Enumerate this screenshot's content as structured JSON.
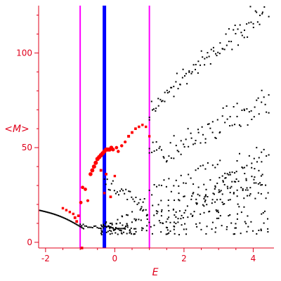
{
  "chart_data": {
    "type": "scatter",
    "title": "",
    "xlabel": "E",
    "ylabel": "<M>",
    "xlim": [
      -2.2,
      4.6
    ],
    "ylim": [
      -3,
      125
    ],
    "grid": false,
    "legend": "none",
    "x_ticks": [
      -2,
      0,
      2,
      4
    ],
    "x_tick_labels": [
      "-2",
      "0",
      "2",
      "4"
    ],
    "y_ticks": [
      0,
      50,
      100
    ],
    "y_tick_labels": [
      "0",
      "50",
      "100"
    ],
    "colors": {
      "axis": "#e0001b",
      "black_points": "#000000",
      "red_points": "#ff0000",
      "vertical_magenta": "#ff00ff",
      "vertical_blue": "#0000ff"
    },
    "vertical_lines": [
      {
        "x": -1.0,
        "color": "#ff00ff",
        "width": "thin"
      },
      {
        "x": -0.3,
        "color": "#0000ff",
        "width": "thick"
      },
      {
        "x": 1.0,
        "color": "#ff00ff",
        "width": "thin"
      }
    ],
    "red_series_points": [
      {
        "x": -1.5,
        "y": 18,
        "s": 1
      },
      {
        "x": -1.4,
        "y": 17,
        "s": 1
      },
      {
        "x": -1.3,
        "y": 16,
        "s": 1
      },
      {
        "x": -1.2,
        "y": 15,
        "s": 1
      },
      {
        "x": -1.15,
        "y": 13,
        "s": 1.3
      },
      {
        "x": -1.1,
        "y": 11,
        "s": 1.3
      },
      {
        "x": -1.05,
        "y": 14,
        "s": 1.2
      },
      {
        "x": -0.98,
        "y": 21,
        "s": 2
      },
      {
        "x": -0.93,
        "y": 29,
        "s": 2
      },
      {
        "x": -0.85,
        "y": 28,
        "s": 2
      },
      {
        "x": -0.78,
        "y": 22,
        "s": 1.5
      },
      {
        "x": -0.7,
        "y": 36,
        "s": 2.6
      },
      {
        "x": -0.65,
        "y": 38,
        "s": 2.8
      },
      {
        "x": -0.6,
        "y": 40,
        "s": 2.9
      },
      {
        "x": -0.55,
        "y": 42,
        "s": 2.9
      },
      {
        "x": -0.5,
        "y": 44,
        "s": 2.9
      },
      {
        "x": -0.45,
        "y": 45,
        "s": 2.9
      },
      {
        "x": -0.4,
        "y": 46,
        "s": 2.9
      },
      {
        "x": -0.35,
        "y": 47,
        "s": 2.9
      },
      {
        "x": -0.3,
        "y": 48,
        "s": 2.9
      },
      {
        "x": -0.25,
        "y": 49,
        "s": 2.9
      },
      {
        "x": -0.2,
        "y": 49,
        "s": 2.9
      },
      {
        "x": -0.15,
        "y": 49,
        "s": 2.9
      },
      {
        "x": -0.1,
        "y": 50,
        "s": 2.6
      },
      {
        "x": -0.05,
        "y": 49,
        "s": 2.3
      },
      {
        "x": 0.05,
        "y": 50,
        "s": 2
      },
      {
        "x": 0.1,
        "y": 48,
        "s": 1.8
      },
      {
        "x": 0.2,
        "y": 51,
        "s": 1.8
      },
      {
        "x": 0.3,
        "y": 53,
        "s": 1.6
      },
      {
        "x": 0.4,
        "y": 56,
        "s": 1.4
      },
      {
        "x": 0.5,
        "y": 58,
        "s": 1.3
      },
      {
        "x": 0.6,
        "y": 60,
        "s": 1.2
      },
      {
        "x": 0.7,
        "y": 61,
        "s": 1.1
      },
      {
        "x": 0.8,
        "y": 62,
        "s": 1
      },
      {
        "x": 0.9,
        "y": 61,
        "s": 1
      },
      {
        "x": 1.0,
        "y": 56,
        "s": 1
      },
      {
        "x": -0.95,
        "y": -3,
        "s": 1.3
      },
      {
        "x": -0.4,
        "y": 38,
        "s": 1.3
      },
      {
        "x": -0.25,
        "y": 36,
        "s": 1.2
      },
      {
        "x": -0.3,
        "y": 26,
        "s": 1
      },
      {
        "x": 0.0,
        "y": 35,
        "s": 1
      },
      {
        "x": -0.12,
        "y": 24,
        "s": 1.2
      }
    ],
    "black_band_upper": {
      "x_start": 1.0,
      "x_end": 4.45,
      "y_start": 70,
      "y_end": 125
    },
    "black_band_middle": {
      "x_start": 1.0,
      "x_end": 4.45,
      "y_start": 43,
      "y_end": 74
    },
    "black_band_lower": {
      "x_start": 1.0,
      "x_end": 4.45,
      "y_start": 28,
      "y_end": 47
    },
    "black_cloud": {
      "x_start": -0.4,
      "x_end": 4.45,
      "y_min": 0,
      "y_max": 45
    },
    "black_left_curve": {
      "x_start": -2.2,
      "x_end": -0.9,
      "y_start": 17,
      "y_end": 7
    },
    "black_rising_curve": {
      "x_start": -0.3,
      "x_end": 0.9,
      "y_start": 32,
      "y_end": 20
    }
  }
}
